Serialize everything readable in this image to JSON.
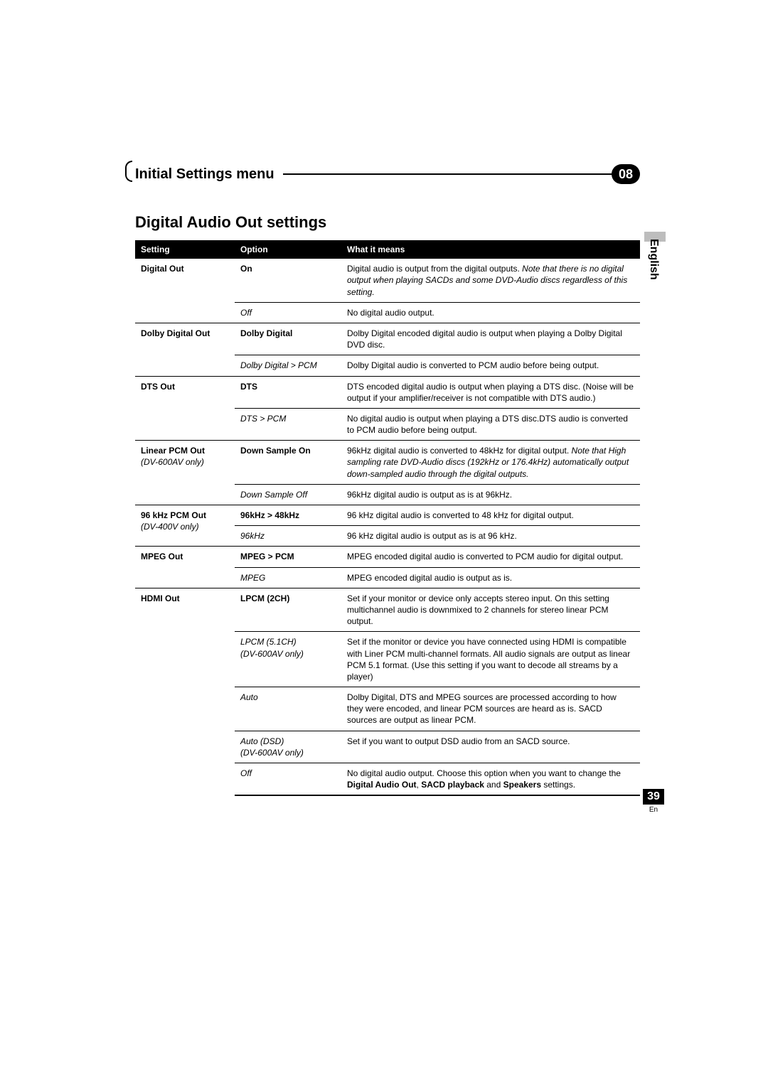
{
  "chapter": {
    "title": "Initial Settings menu",
    "number": "08"
  },
  "section_title": "Digital Audio Out settings",
  "side_tab": "English",
  "page": {
    "number": "39",
    "lang": "En"
  },
  "columns": {
    "setting": "Setting",
    "option": "Option",
    "desc": "What it means"
  },
  "rows": [
    {
      "setting": "Digital Out",
      "setting_sub": "",
      "options": [
        {
          "label": "On",
          "style": "bold",
          "desc": "Digital audio is output from the digital outputs.",
          "desc_italic": "Note that there is no digital output when playing SACDs and some DVD-Audio discs regardless of this setting."
        },
        {
          "label": "Off",
          "style": "italic",
          "desc": "No digital audio output."
        }
      ]
    },
    {
      "setting": "Dolby Digital Out",
      "setting_sub": "",
      "options": [
        {
          "label": "Dolby Digital",
          "style": "bold",
          "desc": "Dolby Digital encoded digital audio is output when playing a Dolby Digital DVD disc."
        },
        {
          "label": "Dolby Digital > PCM",
          "style": "italic",
          "desc": "Dolby Digital audio is converted to PCM audio before being output."
        }
      ]
    },
    {
      "setting": "DTS Out",
      "setting_sub": "",
      "options": [
        {
          "label": "DTS",
          "style": "bold",
          "desc": "DTS encoded digital audio is output when playing a DTS disc. (Noise will be output if your amplifier/receiver is not compatible with DTS audio.)"
        },
        {
          "label": "DTS > PCM",
          "style": "italic",
          "desc": "No digital audio is output when playing a DTS disc.DTS audio is converted to PCM audio before being output."
        }
      ]
    },
    {
      "setting": "Linear PCM Out",
      "setting_sub": "(DV-600AV only)",
      "options": [
        {
          "label": "Down Sample On",
          "style": "bold",
          "desc": "96kHz digital audio is converted to 48kHz for digital output.",
          "desc_italic": "Note that High sampling rate DVD-Audio discs (192kHz or 176.4kHz) automatically output down-sampled audio through the digital outputs."
        },
        {
          "label": "Down Sample Off",
          "style": "italic",
          "desc": "96kHz digital audio is output as is at 96kHz."
        }
      ]
    },
    {
      "setting": "96 kHz PCM Out",
      "setting_sub": "(DV-400V only)",
      "options": [
        {
          "label": "96kHz > 48kHz",
          "style": "bold",
          "desc": "96 kHz digital audio is converted to 48 kHz for digital output."
        },
        {
          "label": "96kHz",
          "style": "italic",
          "desc": "96 kHz digital audio is output as is at 96 kHz."
        }
      ]
    },
    {
      "setting": "MPEG Out",
      "setting_sub": "",
      "options": [
        {
          "label": "MPEG > PCM",
          "style": "bold",
          "desc": "MPEG encoded digital audio is converted to PCM audio for digital output."
        },
        {
          "label": "MPEG",
          "style": "italic",
          "desc": "MPEG encoded digital audio is output as is."
        }
      ]
    },
    {
      "setting": "HDMI Out",
      "setting_sub": "",
      "options": [
        {
          "label": "LPCM (2CH)",
          "style": "bold",
          "desc": "Set if your monitor or device only accepts stereo input. On this setting multichannel audio is downmixed to 2 channels for stereo linear PCM output."
        },
        {
          "label": "LPCM (5.1CH)",
          "label_sub": "(DV-600AV only)",
          "style": "italic",
          "desc": "Set if the monitor or device you have connected using HDMI is  compatible with Liner PCM multi-channel formats. All audio signals are output as linear PCM 5.1 format. (Use this setting if you want to decode all streams by a player)"
        },
        {
          "label": "Auto",
          "style": "italic",
          "desc": "Dolby Digital, DTS and MPEG sources are processed according to how they were encoded, and linear PCM sources are heard as is. SACD sources are output as linear PCM."
        },
        {
          "label": "Auto (DSD)",
          "label_sub": "(DV-600AV only)",
          "style": "italic",
          "desc": "Set if you want to output DSD audio from an SACD source."
        },
        {
          "label": "Off",
          "style": "italic",
          "desc_pre": "No digital audio output. Choose this option when you want to change the ",
          "desc_bold1": "Digital Audio Out",
          "desc_mid1": ", ",
          "desc_bold2": "SACD playback",
          "desc_mid2": " and ",
          "desc_bold3": "Speakers",
          "desc_post": " settings."
        }
      ]
    }
  ]
}
